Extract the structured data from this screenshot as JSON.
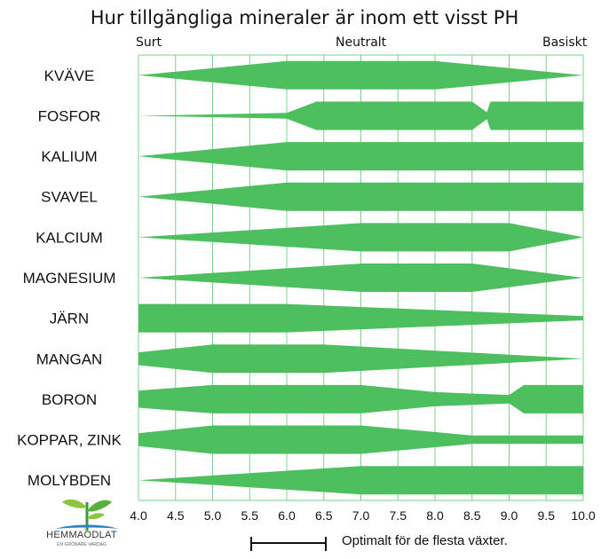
{
  "chart_data": {
    "type": "area",
    "title": "Hur tillgängliga mineraler är inom ett visst PH",
    "top_labels": {
      "left": "Surt",
      "center": "Neutralt",
      "right": "Basiskt"
    },
    "x_ticks": [
      "4.0",
      "4.5",
      "5.0",
      "5.5",
      "6.0",
      "6.5",
      "7.0",
      "7.5",
      "8.0",
      "8.5",
      "9.0",
      "9.5",
      "10.0"
    ],
    "xlim": [
      4.0,
      10.0
    ],
    "color": "#4ebf5e",
    "grid_color": "#7fd08a",
    "series": [
      {
        "name": "KVÄVE",
        "profile": [
          [
            4.0,
            0.0
          ],
          [
            6.0,
            1.0
          ],
          [
            8.0,
            1.0
          ],
          [
            10.0,
            0.0
          ]
        ]
      },
      {
        "name": "FOSFOR",
        "profile": [
          [
            4.0,
            0.0
          ],
          [
            6.0,
            0.2
          ],
          [
            6.4,
            1.0
          ],
          [
            8.5,
            1.0
          ],
          [
            8.7,
            0.25
          ],
          [
            8.75,
            1.0
          ],
          [
            10.0,
            1.0
          ]
        ]
      },
      {
        "name": "KALIUM",
        "profile": [
          [
            4.0,
            0.0
          ],
          [
            6.0,
            1.0
          ],
          [
            10.0,
            1.0
          ]
        ]
      },
      {
        "name": "SVAVEL",
        "profile": [
          [
            4.0,
            0.0
          ],
          [
            6.0,
            1.0
          ],
          [
            10.0,
            1.0
          ]
        ]
      },
      {
        "name": "KALCIUM",
        "profile": [
          [
            4.0,
            0.0
          ],
          [
            7.0,
            1.0
          ],
          [
            9.0,
            1.0
          ],
          [
            10.0,
            0.0
          ]
        ]
      },
      {
        "name": "MAGNESIUM",
        "profile": [
          [
            4.0,
            0.0
          ],
          [
            7.0,
            1.0
          ],
          [
            8.5,
            1.0
          ],
          [
            10.0,
            0.0
          ]
        ]
      },
      {
        "name": "JÄRN",
        "profile": [
          [
            4.0,
            1.0
          ],
          [
            6.0,
            1.0
          ],
          [
            10.0,
            0.15
          ]
        ]
      },
      {
        "name": "MANGAN",
        "profile": [
          [
            4.0,
            0.45
          ],
          [
            5.0,
            1.0
          ],
          [
            6.5,
            1.0
          ],
          [
            10.0,
            0.0
          ]
        ]
      },
      {
        "name": "BORON",
        "profile": [
          [
            4.0,
            0.6
          ],
          [
            5.0,
            1.0
          ],
          [
            7.0,
            1.0
          ],
          [
            8.0,
            0.5
          ],
          [
            9.0,
            0.3
          ],
          [
            9.2,
            1.0
          ],
          [
            10.0,
            1.0
          ]
        ]
      },
      {
        "name": "KOPPAR, ZINK",
        "profile": [
          [
            4.0,
            0.45
          ],
          [
            5.0,
            1.0
          ],
          [
            7.0,
            1.0
          ],
          [
            8.5,
            0.3
          ],
          [
            10.0,
            0.3
          ]
        ]
      },
      {
        "name": "MOLYBDEN",
        "profile": [
          [
            4.0,
            0.0
          ],
          [
            7.0,
            1.0
          ],
          [
            10.0,
            1.0
          ]
        ]
      }
    ],
    "legend_text": "Optimalt för de flesta växter.",
    "grid": true
  },
  "logo": {
    "name": "HEMMAODLAT",
    "tagline": "EN GRÖNARE VARDAG"
  }
}
